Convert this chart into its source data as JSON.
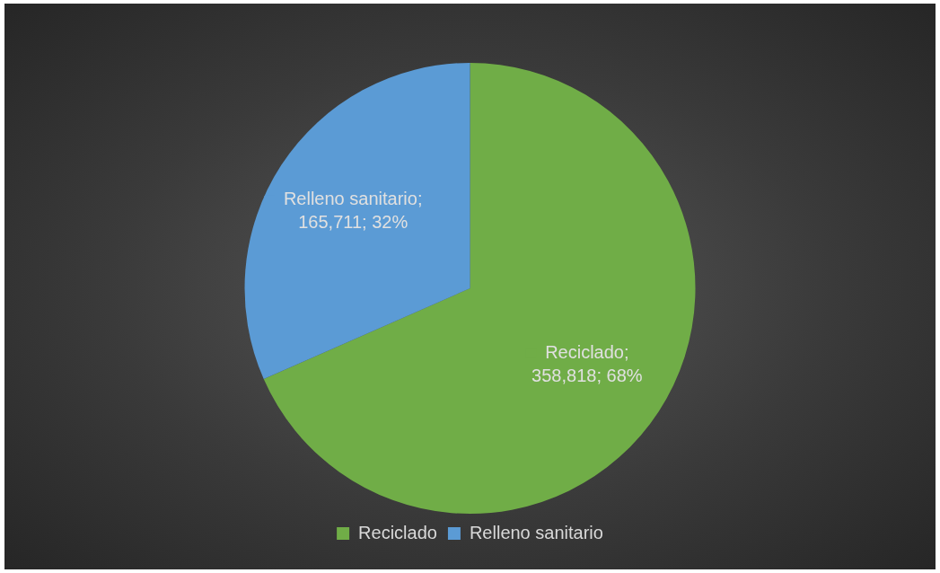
{
  "chart_data": {
    "type": "pie",
    "categories": [
      "Reciclado",
      "Relleno sanitario"
    ],
    "values": [
      358818,
      165711
    ],
    "colors": [
      "#70ad47",
      "#5b9bd5"
    ],
    "value_labels": [
      "Reciclado; 358,818; 68%",
      "Relleno sanitario; 165,711; 32%"
    ],
    "legend": "bottom"
  }
}
